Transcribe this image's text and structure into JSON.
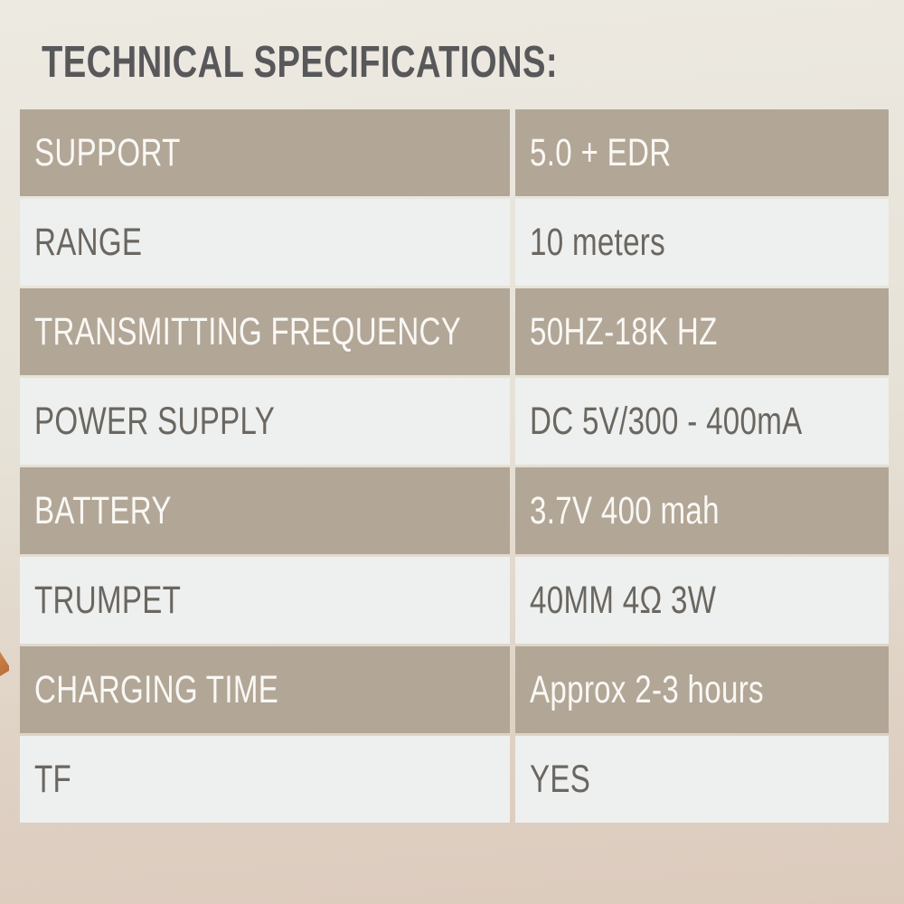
{
  "page": {
    "title": "TECHNICAL SPECIFICATIONS:"
  },
  "colors": {
    "bg_top": "#eae6dd",
    "bg_bottom": "#dccbbd",
    "row_dark_bg": "#b2a697",
    "row_light_bg": "#edf0ee",
    "row_dark_text": "#f9f8f4",
    "row_light_text": "#6b6660",
    "title_text": "#58585a",
    "corner_mark": "#b56c3b"
  },
  "table": {
    "rows": [
      {
        "label": "SUPPORT",
        "value": "5.0 + EDR",
        "variant": "dark"
      },
      {
        "label": "RANGE",
        "value": "10 meters",
        "variant": "light"
      },
      {
        "label": "TRANSMITTING FREQUENCY",
        "value": "50HZ-18K HZ",
        "variant": "dark"
      },
      {
        "label": "POWER SUPPLY",
        "value": "DC 5V/300 - 400mA",
        "variant": "light"
      },
      {
        "label": "BATTERY",
        "value": "3.7V 400 mah",
        "variant": "dark"
      },
      {
        "label": "TRUMPET",
        "value": "40MM 4Ω 3W",
        "variant": "light"
      },
      {
        "label": "CHARGING TIME",
        "value": "Approx 2-3 hours",
        "variant": "dark"
      },
      {
        "label": "TF",
        "value": "YES",
        "variant": "light"
      }
    ]
  }
}
